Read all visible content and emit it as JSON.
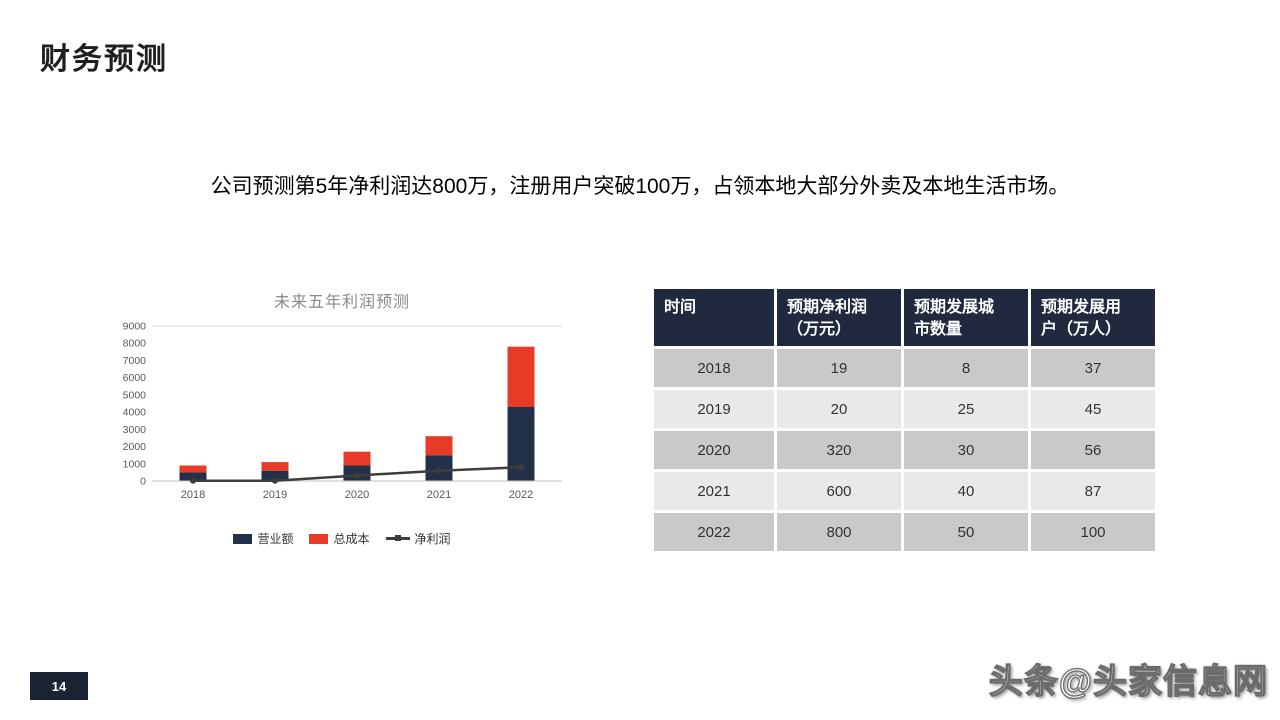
{
  "slide": {
    "title": "财务预测",
    "subtitle": "公司预测第5年净利润达800万，注册用户突破100万，占领本地大部分外卖及本地生活市场。",
    "page_number": "14",
    "watermark": "头条@头家信息网"
  },
  "chart_data": {
    "type": "bar",
    "title": "未来五年利润预测",
    "categories": [
      "2018",
      "2019",
      "2020",
      "2021",
      "2022"
    ],
    "series": [
      {
        "name": "营业额",
        "type": "bar",
        "color": "#22304a",
        "values": [
          500,
          600,
          900,
          1500,
          4300
        ]
      },
      {
        "name": "总成本",
        "type": "bar",
        "color": "#e73b28",
        "values": [
          400,
          500,
          800,
          1100,
          3500
        ]
      },
      {
        "name": "净利润",
        "type": "line",
        "color": "#403c38",
        "values": [
          19,
          20,
          320,
          600,
          800
        ]
      }
    ],
    "ylim": [
      0,
      9000
    ],
    "ytick_step": 1000,
    "xlabel": "",
    "ylabel": "",
    "grid": false,
    "legend_position": "bottom"
  },
  "table": {
    "headers": [
      "时间",
      "预期净利润\n（万元）",
      "预期发展城\n市数量",
      "预期发展用\n户（万人）"
    ],
    "rows": [
      [
        "2018",
        "19",
        "8",
        "37"
      ],
      [
        "2019",
        "20",
        "25",
        "45"
      ],
      [
        "2020",
        "320",
        "30",
        "56"
      ],
      [
        "2021",
        "600",
        "40",
        "87"
      ],
      [
        "2022",
        "800",
        "50",
        "100"
      ]
    ]
  },
  "colors": {
    "table_header_bg": "#20293d",
    "table_header_text": "#ffffff",
    "row_dark": "#c9c9c9",
    "row_light": "#e9e9e9",
    "page_number_bg": "#1b2433",
    "axis_text": "#595959"
  }
}
